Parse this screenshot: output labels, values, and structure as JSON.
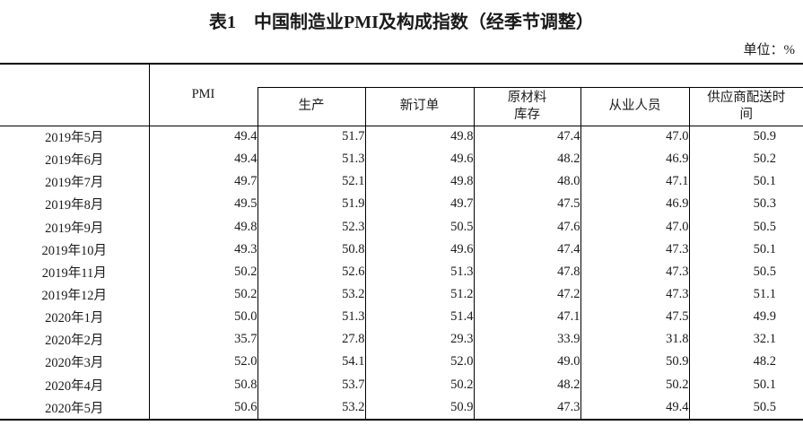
{
  "page": {
    "title": "表1　中国制造业PMI及构成指数（经季节调整）",
    "unit_label": "单位：%"
  },
  "table": {
    "columns": [
      "PMI",
      "生产",
      "新订单",
      "原材料\n库存",
      "从业人员",
      "供应商配送时\n间"
    ],
    "column_names": [
      "pmi",
      "production",
      "new-orders",
      "raw-materials-inventory",
      "employed-persons",
      "supplier-delivery-time"
    ],
    "rows": [
      {
        "period": "2019年5月",
        "values": [
          "49.4",
          "51.7",
          "49.8",
          "47.4",
          "47.0",
          "50.9"
        ]
      },
      {
        "period": "2019年6月",
        "values": [
          "49.4",
          "51.3",
          "49.6",
          "48.2",
          "46.9",
          "50.2"
        ]
      },
      {
        "period": "2019年7月",
        "values": [
          "49.7",
          "52.1",
          "49.8",
          "48.0",
          "47.1",
          "50.1"
        ]
      },
      {
        "period": "2019年8月",
        "values": [
          "49.5",
          "51.9",
          "49.7",
          "47.5",
          "46.9",
          "50.3"
        ]
      },
      {
        "period": "2019年9月",
        "values": [
          "49.8",
          "52.3",
          "50.5",
          "47.6",
          "47.0",
          "50.5"
        ]
      },
      {
        "period": "2019年10月",
        "values": [
          "49.3",
          "50.8",
          "49.6",
          "47.4",
          "47.3",
          "50.1"
        ]
      },
      {
        "period": "2019年11月",
        "values": [
          "50.2",
          "52.6",
          "51.3",
          "47.8",
          "47.3",
          "50.5"
        ]
      },
      {
        "period": "2019年12月",
        "values": [
          "50.2",
          "53.2",
          "51.2",
          "47.2",
          "47.3",
          "51.1"
        ]
      },
      {
        "period": "2020年1月",
        "values": [
          "50.0",
          "51.3",
          "51.4",
          "47.1",
          "47.5",
          "49.9"
        ]
      },
      {
        "period": "2020年2月",
        "values": [
          "35.7",
          "27.8",
          "29.3",
          "33.9",
          "31.8",
          "32.1"
        ]
      },
      {
        "period": "2020年3月",
        "values": [
          "52.0",
          "54.1",
          "52.0",
          "49.0",
          "50.9",
          "48.2"
        ]
      },
      {
        "period": "2020年4月",
        "values": [
          "50.8",
          "53.7",
          "50.2",
          "48.2",
          "50.2",
          "50.1"
        ]
      },
      {
        "period": "2020年5月",
        "values": [
          "50.6",
          "53.2",
          "50.9",
          "47.3",
          "49.4",
          "50.5"
        ]
      }
    ]
  }
}
